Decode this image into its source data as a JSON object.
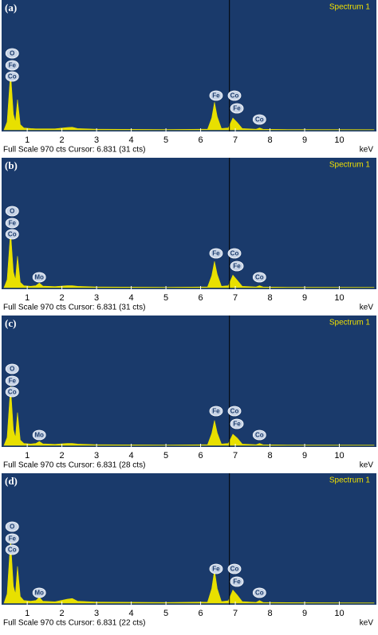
{
  "chart_data": [
    {
      "type": "area",
      "panel": "(a)",
      "title": "Spectrum 1",
      "footer": "Full Scale 970 cts Cursor: 6.831 (31 cts)",
      "x_label": "keV",
      "cursor": 6.831,
      "xlim": [
        0.33,
        11
      ],
      "ylim": [
        0,
        970
      ],
      "xticks": [
        1,
        2,
        3,
        4,
        5,
        6,
        7,
        8,
        9,
        10
      ],
      "color": "#e8e000",
      "peak_labels": [
        "O",
        "Fe",
        "Co",
        "Fe",
        "Co",
        "Fe",
        "Co"
      ],
      "x": [
        0.33,
        0.42,
        0.52,
        0.6,
        0.66,
        0.72,
        0.8,
        0.9,
        1.1,
        1.25,
        1.35,
        1.45,
        1.8,
        2.15,
        2.3,
        2.45,
        3,
        5,
        6.2,
        6.32,
        6.4,
        6.48,
        6.6,
        6.8,
        6.93,
        7.06,
        7.2,
        7.6,
        7.7,
        7.8,
        8.5,
        11
      ],
      "values": [
        0,
        60,
        440,
        120,
        60,
        230,
        40,
        15,
        10,
        8,
        8,
        8,
        8,
        18,
        20,
        10,
        5,
        3,
        5,
        90,
        210,
        100,
        10,
        15,
        90,
        55,
        10,
        5,
        15,
        5,
        3,
        2
      ]
    },
    {
      "type": "area",
      "panel": "(b)",
      "title": "Spectrum 1",
      "footer": "Full Scale 970 cts Cursor: 6.831 (31 cts)",
      "x_label": "keV",
      "cursor": 6.831,
      "xlim": [
        0.33,
        11
      ],
      "ylim": [
        0,
        970
      ],
      "xticks": [
        1,
        2,
        3,
        4,
        5,
        6,
        7,
        8,
        9,
        10
      ],
      "color": "#e8e000",
      "peak_labels": [
        "O",
        "Fe",
        "Co",
        "Mo",
        "Fe",
        "Co",
        "Fe",
        "Co"
      ],
      "x": [
        0.33,
        0.42,
        0.52,
        0.6,
        0.66,
        0.72,
        0.8,
        0.9,
        1.1,
        1.25,
        1.35,
        1.45,
        1.8,
        2.15,
        2.3,
        2.45,
        3,
        5,
        6.2,
        6.32,
        6.4,
        6.48,
        6.6,
        6.8,
        6.93,
        7.06,
        7.2,
        7.6,
        7.7,
        7.8,
        8.5,
        11
      ],
      "values": [
        0,
        60,
        430,
        120,
        60,
        240,
        40,
        15,
        10,
        15,
        35,
        12,
        8,
        15,
        15,
        10,
        5,
        3,
        5,
        90,
        200,
        100,
        10,
        15,
        95,
        55,
        10,
        5,
        15,
        5,
        3,
        2
      ]
    },
    {
      "type": "area",
      "panel": "(c)",
      "title": "Spectrum 1",
      "footer": "Full Scale 970 cts Cursor: 6.831 (28 cts)",
      "x_label": "keV",
      "cursor": 6.831,
      "xlim": [
        0.33,
        11
      ],
      "ylim": [
        0,
        970
      ],
      "xticks": [
        1,
        2,
        3,
        4,
        5,
        6,
        7,
        8,
        9,
        10
      ],
      "color": "#e8e000",
      "peak_labels": [
        "O",
        "Fe",
        "Co",
        "Mo",
        "Fe",
        "Co",
        "Fe",
        "Co"
      ],
      "x": [
        0.33,
        0.42,
        0.52,
        0.6,
        0.66,
        0.72,
        0.8,
        0.9,
        1.1,
        1.25,
        1.35,
        1.45,
        1.8,
        2.15,
        2.3,
        2.45,
        3,
        5,
        6.2,
        6.32,
        6.4,
        6.48,
        6.6,
        6.8,
        6.93,
        7.06,
        7.2,
        7.6,
        7.7,
        7.8,
        8.5,
        11
      ],
      "values": [
        0,
        60,
        450,
        120,
        60,
        250,
        40,
        15,
        10,
        15,
        30,
        12,
        8,
        15,
        15,
        10,
        5,
        3,
        5,
        90,
        190,
        95,
        10,
        15,
        85,
        55,
        10,
        5,
        15,
        5,
        3,
        2
      ]
    },
    {
      "type": "area",
      "panel": "(d)",
      "title": "Spectrum 1",
      "footer": "Full Scale 970 cts Cursor: 6.831 (22 cts)",
      "x_label": "keV",
      "cursor": 6.831,
      "xlim": [
        0.33,
        11
      ],
      "ylim": [
        0,
        970
      ],
      "xticks": [
        1,
        2,
        3,
        4,
        5,
        6,
        7,
        8,
        9,
        10
      ],
      "color": "#e8e000",
      "peak_labels": [
        "O",
        "Fe",
        "Co",
        "Mo",
        "Fe",
        "Co",
        "Fe",
        "Co"
      ],
      "x": [
        0.33,
        0.42,
        0.52,
        0.6,
        0.66,
        0.72,
        0.8,
        0.9,
        1.1,
        1.25,
        1.35,
        1.45,
        1.8,
        2.15,
        2.3,
        2.45,
        3,
        5,
        6.2,
        6.32,
        6.4,
        6.48,
        6.6,
        6.8,
        6.93,
        7.06,
        7.2,
        7.6,
        7.7,
        7.8,
        8.5,
        11
      ],
      "values": [
        0,
        70,
        480,
        130,
        70,
        280,
        50,
        20,
        15,
        20,
        45,
        15,
        10,
        30,
        35,
        15,
        8,
        5,
        8,
        110,
        250,
        110,
        12,
        18,
        100,
        60,
        12,
        6,
        20,
        6,
        4,
        2
      ]
    }
  ]
}
